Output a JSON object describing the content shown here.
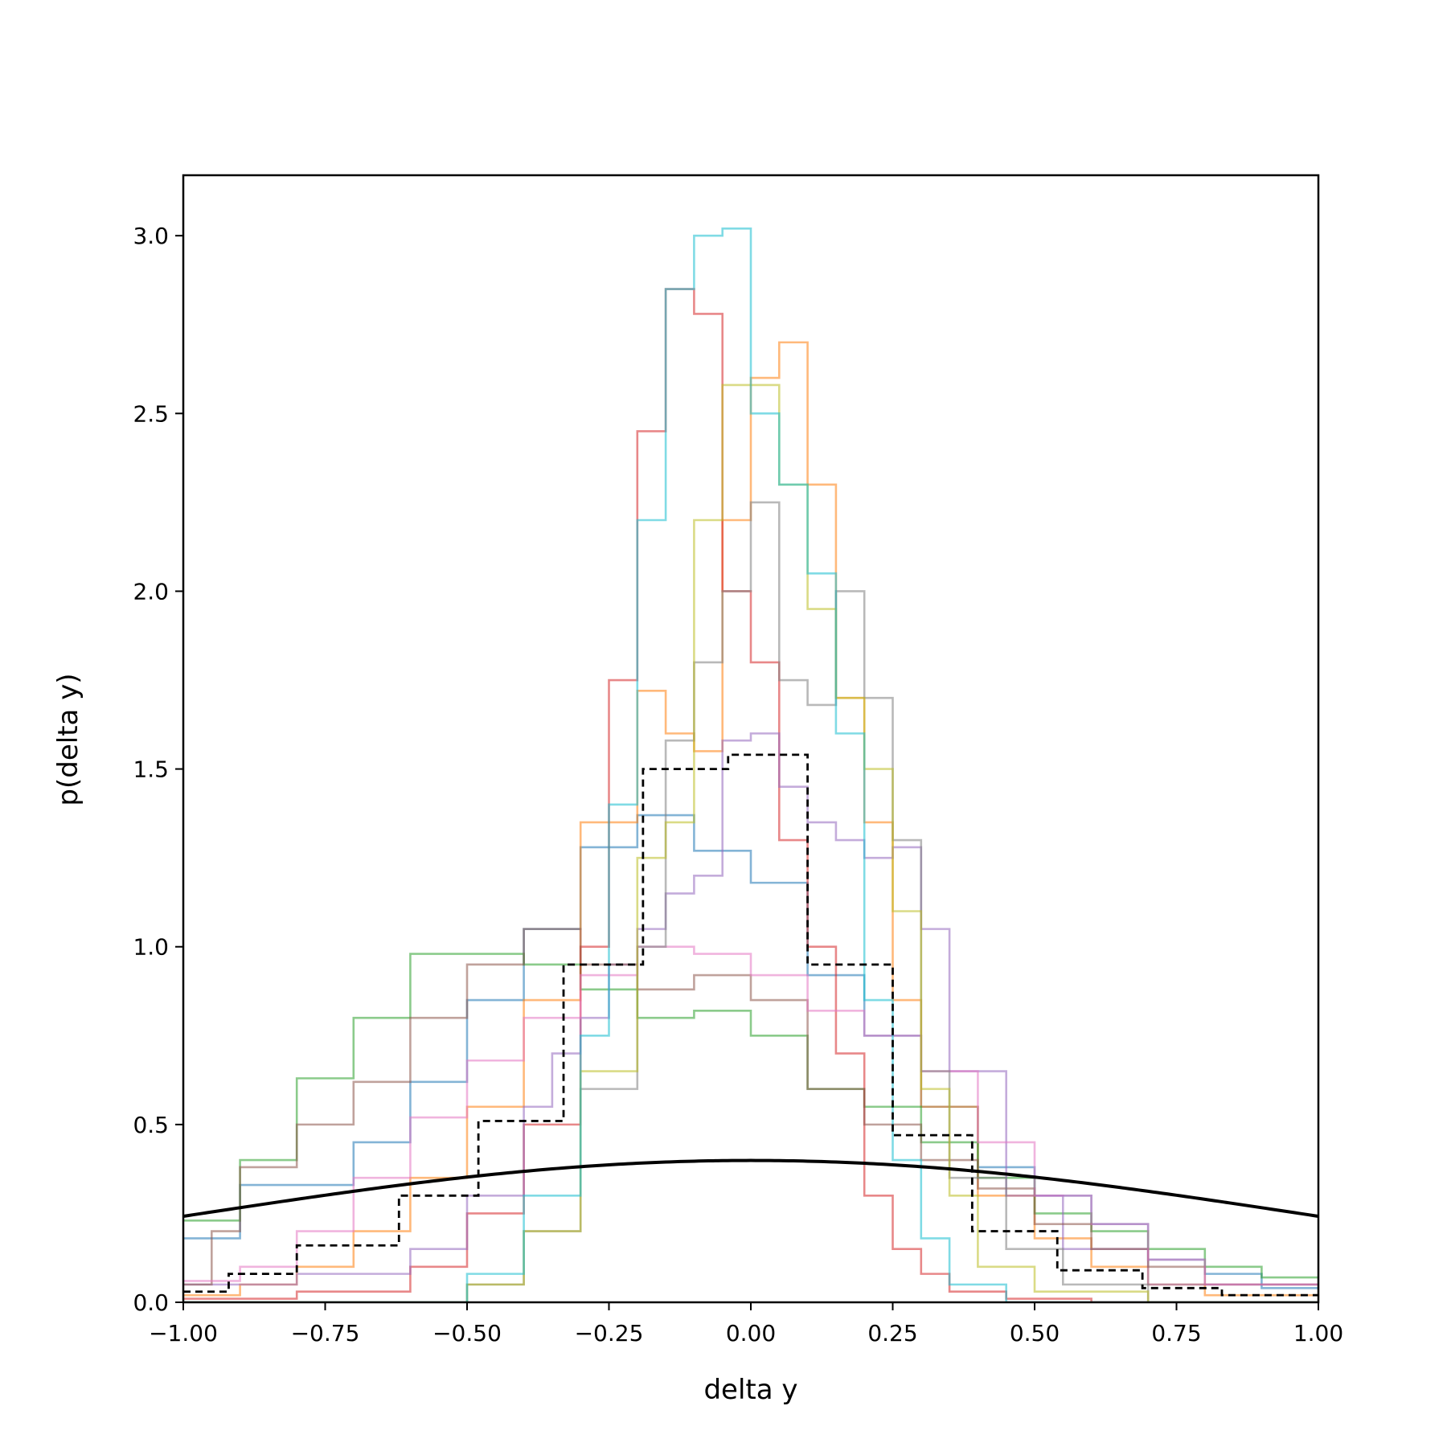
{
  "chart_data": {
    "type": "histogram",
    "xlabel": "delta y",
    "ylabel": "p(delta y)",
    "xlim": [
      -1.0,
      1.0
    ],
    "ylim": [
      0.0,
      3.17
    ],
    "x_ticks": [
      "−1.00",
      "−0.75",
      "−0.50",
      "−0.25",
      "0.00",
      "0.25",
      "0.50",
      "0.75",
      "1.00"
    ],
    "x_tick_values": [
      -1.0,
      -0.75,
      -0.5,
      -0.25,
      0.0,
      0.25,
      0.5,
      0.75,
      1.0
    ],
    "y_ticks": [
      "0.0",
      "0.5",
      "1.0",
      "1.5",
      "2.0",
      "2.5",
      "3.0"
    ],
    "y_tick_values": [
      0.0,
      0.5,
      1.0,
      1.5,
      2.0,
      2.5,
      3.0
    ],
    "grid": false,
    "legend": false,
    "series": [
      {
        "style": "step",
        "color": "#1f77b4",
        "opacity": 0.55,
        "x": [
          -1.0,
          -0.9,
          -0.7,
          -0.6,
          -0.5,
          -0.4,
          -0.3,
          -0.2,
          -0.1,
          0.0,
          0.1,
          0.2,
          0.3,
          0.4,
          0.5,
          0.6,
          0.7,
          0.8,
          0.9,
          1.0
        ],
        "values": [
          0.18,
          0.33,
          0.45,
          0.62,
          0.85,
          1.05,
          1.28,
          1.37,
          1.27,
          1.18,
          0.92,
          0.75,
          0.55,
          0.38,
          0.3,
          0.22,
          0.12,
          0.08,
          0.04
        ]
      },
      {
        "style": "step",
        "color": "#ff7f0e",
        "opacity": 0.55,
        "x": [
          -1.0,
          -0.9,
          -0.8,
          -0.7,
          -0.6,
          -0.5,
          -0.4,
          -0.3,
          -0.2,
          -0.15,
          -0.1,
          -0.05,
          0.0,
          0.05,
          0.1,
          0.15,
          0.2,
          0.25,
          0.3,
          0.4,
          0.5,
          0.6,
          0.7,
          0.8,
          1.0
        ],
        "values": [
          0.02,
          0.05,
          0.1,
          0.2,
          0.35,
          0.55,
          0.85,
          1.35,
          1.72,
          1.6,
          1.55,
          2.2,
          2.6,
          2.7,
          2.3,
          1.7,
          1.35,
          0.85,
          0.55,
          0.3,
          0.18,
          0.1,
          0.05,
          0.02
        ]
      },
      {
        "style": "step",
        "color": "#2ca02c",
        "opacity": 0.55,
        "x": [
          -1.0,
          -0.9,
          -0.8,
          -0.7,
          -0.6,
          -0.5,
          -0.4,
          -0.3,
          -0.2,
          -0.1,
          0.0,
          0.1,
          0.2,
          0.3,
          0.4,
          0.5,
          0.6,
          0.7,
          0.8,
          0.9,
          1.0
        ],
        "values": [
          0.23,
          0.4,
          0.63,
          0.8,
          0.98,
          0.98,
          0.95,
          0.88,
          0.8,
          0.82,
          0.75,
          0.6,
          0.55,
          0.45,
          0.35,
          0.25,
          0.2,
          0.15,
          0.1,
          0.07
        ]
      },
      {
        "style": "step",
        "color": "#d62728",
        "opacity": 0.55,
        "x": [
          -1.0,
          -0.8,
          -0.6,
          -0.5,
          -0.4,
          -0.3,
          -0.25,
          -0.2,
          -0.15,
          -0.1,
          -0.05,
          0.0,
          0.05,
          0.1,
          0.15,
          0.2,
          0.25,
          0.3,
          0.35,
          0.45,
          0.6,
          1.0
        ],
        "values": [
          0.01,
          0.03,
          0.1,
          0.25,
          0.5,
          1.0,
          1.75,
          2.45,
          2.85,
          2.78,
          2.0,
          1.8,
          1.3,
          1.0,
          0.7,
          0.3,
          0.15,
          0.08,
          0.03,
          0.01,
          0.0
        ]
      },
      {
        "style": "step",
        "color": "#9467bd",
        "opacity": 0.55,
        "x": [
          -1.0,
          -0.8,
          -0.6,
          -0.5,
          -0.4,
          -0.35,
          -0.3,
          -0.25,
          -0.2,
          -0.15,
          -0.1,
          -0.05,
          0.0,
          0.05,
          0.1,
          0.15,
          0.2,
          0.25,
          0.3,
          0.35,
          0.45,
          0.55,
          0.7,
          1.0
        ],
        "values": [
          0.05,
          0.08,
          0.15,
          0.3,
          0.55,
          0.7,
          0.8,
          0.95,
          1.05,
          1.15,
          1.2,
          1.58,
          1.6,
          1.45,
          1.35,
          1.3,
          1.25,
          1.28,
          1.05,
          0.65,
          0.3,
          0.15,
          0.05
        ]
      },
      {
        "style": "step",
        "color": "#8c564b",
        "opacity": 0.55,
        "x": [
          -1.0,
          -0.95,
          -0.9,
          -0.8,
          -0.7,
          -0.6,
          -0.5,
          -0.4,
          -0.3,
          -0.2,
          -0.1,
          0.0,
          0.1,
          0.2,
          0.3,
          0.4,
          0.5,
          0.6,
          0.7,
          0.8,
          1.0
        ],
        "values": [
          0.05,
          0.2,
          0.38,
          0.5,
          0.62,
          0.8,
          0.95,
          1.05,
          0.95,
          0.88,
          0.92,
          0.85,
          0.6,
          0.5,
          0.4,
          0.32,
          0.22,
          0.15,
          0.1,
          0.05
        ]
      },
      {
        "style": "step",
        "color": "#e377c2",
        "opacity": 0.55,
        "x": [
          -1.0,
          -0.9,
          -0.8,
          -0.7,
          -0.6,
          -0.5,
          -0.4,
          -0.3,
          -0.2,
          -0.1,
          0.0,
          0.1,
          0.2,
          0.3,
          0.4,
          0.5,
          0.6,
          0.7,
          0.8,
          1.0
        ],
        "values": [
          0.06,
          0.1,
          0.2,
          0.35,
          0.52,
          0.68,
          0.8,
          0.92,
          1.0,
          0.98,
          0.92,
          0.82,
          0.75,
          0.65,
          0.45,
          0.3,
          0.22,
          0.12,
          0.05
        ]
      },
      {
        "style": "step",
        "color": "#7f7f7f",
        "opacity": 0.55,
        "x": [
          -1.0,
          -0.5,
          -0.4,
          -0.3,
          -0.2,
          -0.15,
          -0.1,
          -0.05,
          0.0,
          0.05,
          0.1,
          0.15,
          0.2,
          0.25,
          0.3,
          0.35,
          0.45,
          0.55,
          0.7,
          1.0
        ],
        "values": [
          0.0,
          0.05,
          0.2,
          0.6,
          1.0,
          1.58,
          1.8,
          2.0,
          2.25,
          1.75,
          1.68,
          2.0,
          1.7,
          1.3,
          0.65,
          0.35,
          0.15,
          0.05,
          0.0
        ]
      },
      {
        "style": "step",
        "color": "#bcbd22",
        "opacity": 0.55,
        "x": [
          -1.0,
          -0.5,
          -0.4,
          -0.3,
          -0.2,
          -0.15,
          -0.1,
          -0.05,
          0.0,
          0.05,
          0.1,
          0.15,
          0.2,
          0.25,
          0.3,
          0.35,
          0.4,
          0.5,
          0.7,
          1.0
        ],
        "values": [
          0.0,
          0.05,
          0.2,
          0.65,
          1.25,
          1.35,
          2.2,
          2.58,
          2.58,
          2.3,
          1.95,
          1.7,
          1.5,
          1.1,
          0.6,
          0.3,
          0.1,
          0.03,
          0.0
        ]
      },
      {
        "style": "step",
        "color": "#17becf",
        "opacity": 0.55,
        "x": [
          -1.0,
          -0.5,
          -0.4,
          -0.3,
          -0.25,
          -0.2,
          -0.15,
          -0.1,
          -0.05,
          0.0,
          0.05,
          0.1,
          0.15,
          0.2,
          0.25,
          0.3,
          0.35,
          0.45,
          1.0
        ],
        "values": [
          0.0,
          0.08,
          0.3,
          0.75,
          1.4,
          2.2,
          2.85,
          3.0,
          3.02,
          2.5,
          2.3,
          2.05,
          1.6,
          0.85,
          0.4,
          0.18,
          0.05,
          0.0
        ]
      },
      {
        "style": "step-dashed",
        "color": "#000000",
        "opacity": 1,
        "x": [
          -1.0,
          -0.95,
          -0.92,
          -0.8,
          -0.62,
          -0.48,
          -0.33,
          -0.19,
          -0.05,
          -0.04,
          0.1,
          0.25,
          0.39,
          0.54,
          0.69,
          0.83,
          1.0
        ],
        "values": [
          0.03,
          0.03,
          0.08,
          0.16,
          0.3,
          0.51,
          0.95,
          1.5,
          1.5,
          1.54,
          0.95,
          0.47,
          0.2,
          0.09,
          0.04,
          0.02
        ]
      },
      {
        "style": "curve",
        "color": "#000000",
        "opacity": 1,
        "function": "normal_pdf",
        "mean": 0.0,
        "std": 1.0
      }
    ]
  }
}
